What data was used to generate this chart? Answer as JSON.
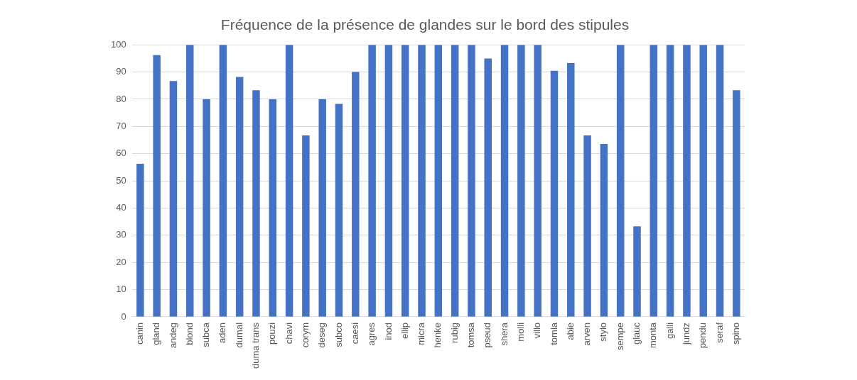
{
  "chart_data": {
    "type": "bar",
    "title": "Fréquence de la présence de glandes sur le bord des stipules",
    "categories": [
      "canin",
      "gland",
      "andeg",
      "blond",
      "subca",
      "aden",
      "dumal",
      "duma trans",
      "pouzi",
      "chavi",
      "corym",
      "deseg",
      "subco",
      "caesi",
      "agres",
      "inod",
      "ellip",
      "micra",
      "henke",
      "rubig",
      "tomsa",
      "pseud",
      "shera",
      "molli",
      "villo",
      "tomla",
      "abie",
      "arven",
      "stylo",
      "sempe",
      "glauc",
      "monta",
      "galli",
      "jundz",
      "pendu",
      "seraf",
      "spino"
    ],
    "values": [
      56.3,
      96.2,
      86.7,
      100,
      80,
      100,
      88.2,
      83.3,
      80,
      100,
      66.7,
      80,
      78.3,
      90,
      100,
      100,
      100,
      100,
      100,
      100,
      100,
      95,
      100,
      100,
      100,
      90.5,
      93.3,
      66.7,
      63.6,
      100,
      33.3,
      100,
      100,
      100,
      100,
      100,
      83.3
    ],
    "color": "#4472c4",
    "ylim": [
      0,
      100
    ],
    "yticks": [
      0,
      10,
      20,
      30,
      40,
      50,
      60,
      70,
      80,
      90,
      100
    ],
    "grid": "y"
  }
}
